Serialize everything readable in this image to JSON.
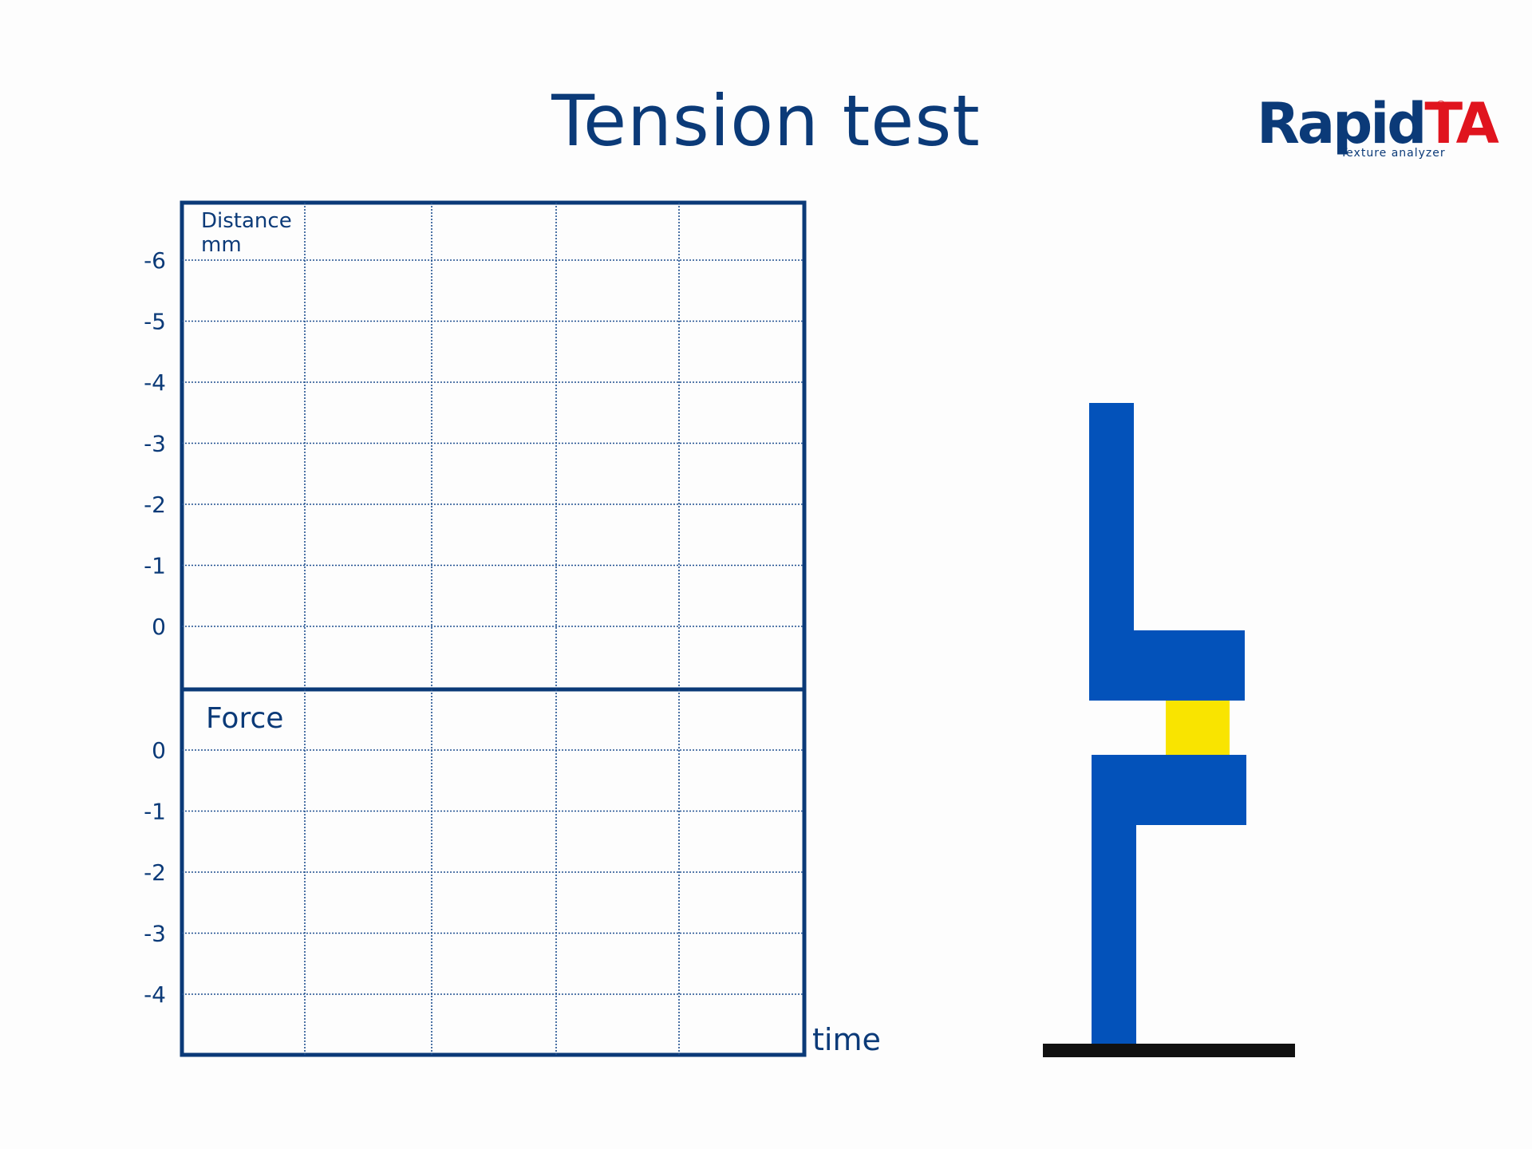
{
  "title": "Tension test",
  "logo": {
    "brand_primary": "Rapid",
    "brand_accent": "TA",
    "registered": "®",
    "tagline": "Texture analyzer",
    "colors": {
      "primary": "#0b3a78",
      "accent": "#e0141e"
    }
  },
  "distance_panel": {
    "label_line1": "Distance",
    "label_line2": "mm",
    "tick_labels": [
      "-6",
      "-5",
      "-4",
      "-3",
      "-2",
      "-1",
      "0"
    ]
  },
  "force_panel": {
    "label": "Force",
    "tick_labels": [
      "0",
      "-1",
      "-2",
      "-3",
      "-4"
    ]
  },
  "time_label": "time",
  "colors": {
    "axis": "#0b3a78",
    "grid": "#1f4f8f",
    "fixture": "#0352ba",
    "sample": "#f9e400",
    "base": "#111111"
  }
}
